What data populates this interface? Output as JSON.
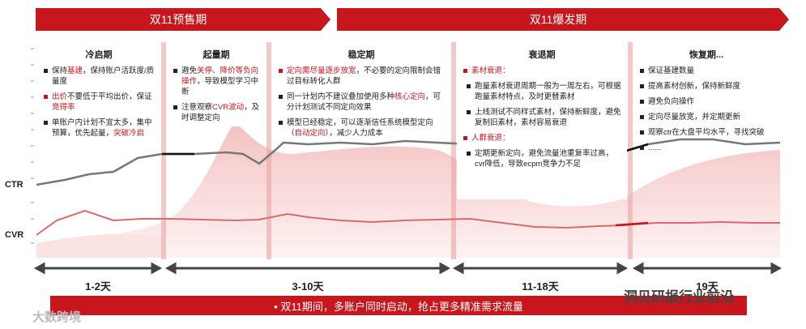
{
  "headers": {
    "presale": "双11预售期",
    "burst": "双11爆发期"
  },
  "axis": {
    "ctr": "CTR",
    "cvr": "CVR"
  },
  "phases": [
    {
      "title": "冷启期",
      "items": [
        "保持基建，保持账户活跃度/质量度",
        "出价不要低于平均出价，保证竞得率",
        "单账户内计划不宜太多，集中预算，优先起量，突破冷启"
      ]
    },
    {
      "title": "起量期",
      "items": [
        "避免关停、降价等负向操作，导致模型学习中断",
        "注意观察CVR波动，及时调整定向"
      ]
    },
    {
      "title": "稳定期",
      "items": [
        "定向需尽量逐步放宽，不必要的定向限制会错过目标转化人群",
        "同一计划内不建议叠加使用多种核心定向，可分计划测试不同定向效果",
        "模型已经稳定，可以逐渐信任系统模型定向（自动定向），减少人力成本"
      ]
    },
    {
      "title": "衰退期",
      "items": [
        "素材衰退：",
        "跑量素材衰退周期一般为一周左右，可根据跑量素材特点，及时更替素材",
        "上线测试不同样式素材，保持新鲜度，避免复制旧素材，素材容易衰退",
        "人群衰退：",
        "定期更新定向，避免流量池重复率过高，cvr降低，导致ecpm竞争力不足"
      ]
    },
    {
      "title": "恢复期...",
      "items": [
        "保证基建数量",
        "提高素材创新，保持新鲜度",
        "避免负向操作",
        "定向尽量放宽，并定期更新",
        "观察ctr在大盘平均水平，寻找突破",
        "......"
      ]
    }
  ],
  "durations": [
    "1-2天",
    "3-10天",
    "11-18天",
    "19天"
  ],
  "bottom_text": "•   双11期间，多账户同时启动，抢占更多精准需求流量",
  "watermarks": {
    "left": "大数跨境",
    "right": "洞见研报行业前沿"
  },
  "colors": {
    "accent": "#c8161d",
    "ctr_line": "#777777",
    "cvr_line": "#d96a6a"
  }
}
